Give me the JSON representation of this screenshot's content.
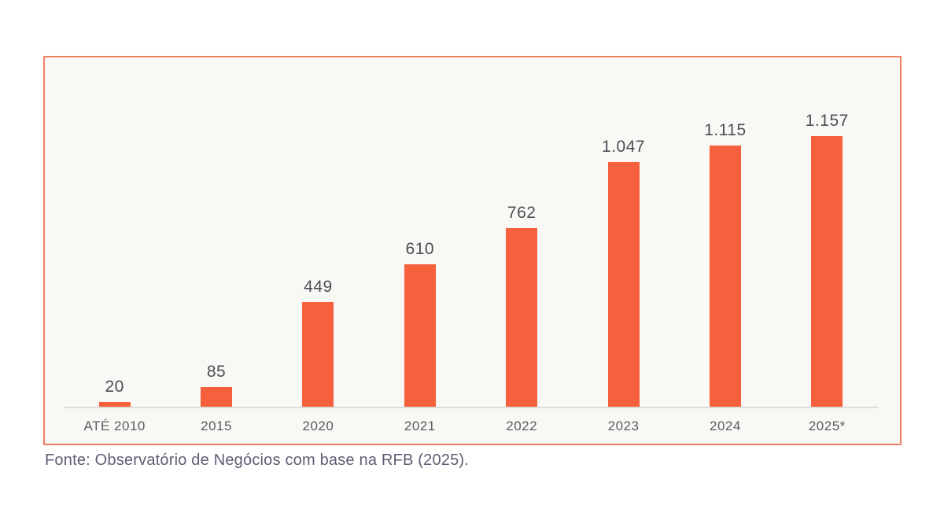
{
  "chart_data": {
    "type": "bar",
    "categories": [
      "ATÉ 2010",
      "2015",
      "2020",
      "2021",
      "2022",
      "2023",
      "2024",
      "2025*"
    ],
    "values": [
      20,
      85,
      449,
      610,
      762,
      1047,
      1115,
      1157
    ],
    "value_labels": [
      "20",
      "85",
      "449",
      "610",
      "762",
      "1.047",
      "1.115",
      "1.157"
    ],
    "title": "",
    "xlabel": "",
    "ylabel": "",
    "ylim": [
      0,
      1200
    ],
    "grid": false,
    "legend": false,
    "data_labels_position": "above-bars"
  },
  "caption": "Fonte: Observatório de Negócios com base na RFB (2025).",
  "colors": {
    "bar": "#f6603c",
    "box_border": "#ee8065",
    "box_background": "#f9f8f5",
    "axis_line": "#dcdcd9",
    "value_text": "#4b4e54",
    "category_text": "#595b61",
    "caption_text": "#5e5d73",
    "page_background": "#ffffff"
  }
}
